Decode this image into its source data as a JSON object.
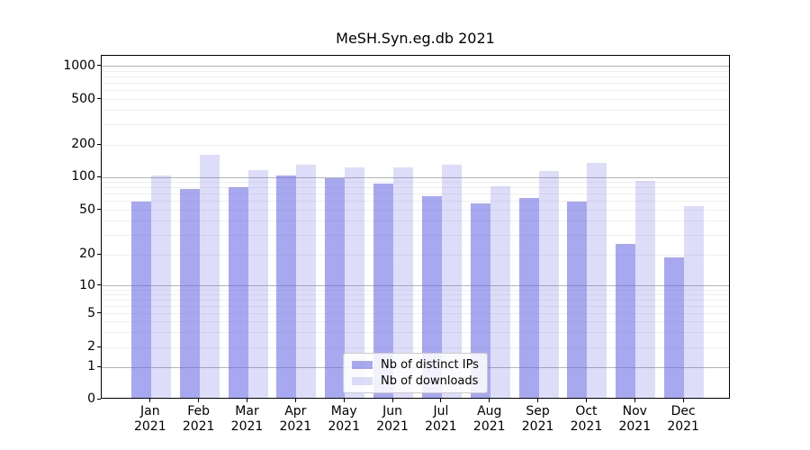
{
  "chart_data": {
    "type": "bar",
    "title": "MeSH.Syn.eg.db 2021",
    "year_label": "2021",
    "categories": [
      "Jan",
      "Feb",
      "Mar",
      "Apr",
      "May",
      "Jun",
      "Jul",
      "Aug",
      "Sep",
      "Oct",
      "Nov",
      "Dec"
    ],
    "series": [
      {
        "name": "Nb of distinct IPs",
        "color": "rgba(102,102,230,0.57)",
        "values": [
          58,
          75,
          78,
          100,
          95,
          85,
          65,
          55,
          62,
          58,
          24,
          18
        ]
      },
      {
        "name": "Nb of downloads",
        "color": "rgba(102,102,230,0.22)",
        "values": [
          100,
          155,
          113,
          125,
          120,
          120,
          125,
          80,
          110,
          130,
          90,
          52
        ]
      }
    ],
    "xlabel": "",
    "ylabel": "",
    "yscale": "symlog",
    "yticks": [
      0,
      1,
      2,
      5,
      10,
      20,
      50,
      100,
      200,
      500,
      1000
    ],
    "ylim": [
      0,
      1200
    ],
    "grid": "both",
    "legend_position": "lower center"
  },
  "colors": {
    "bar_base": "#6666e6",
    "grid_major": "#b4b4b4",
    "grid_minor": "#efefef",
    "spine": "#000000",
    "legend_border": "#cccccc"
  }
}
